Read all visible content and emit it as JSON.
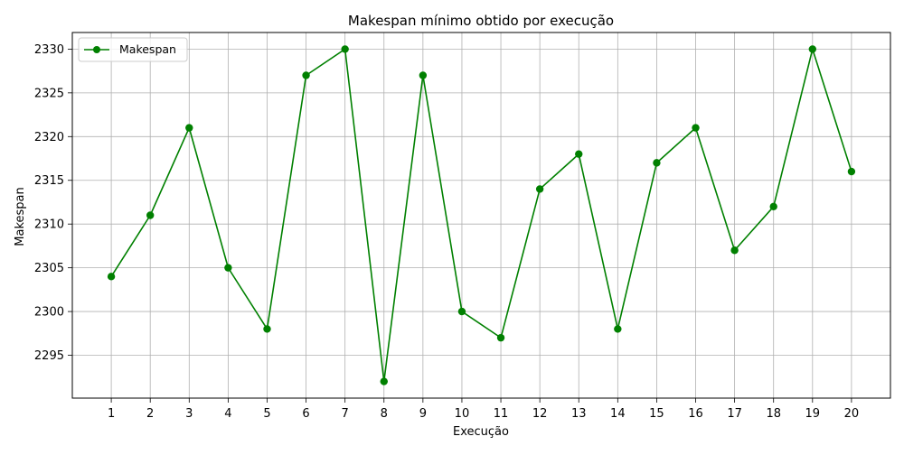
{
  "chart_data": {
    "type": "line",
    "title": "Makespan mínimo obtido por execução",
    "xlabel": "Execução",
    "ylabel": "Makespan",
    "x": [
      1,
      2,
      3,
      4,
      5,
      6,
      7,
      8,
      9,
      10,
      11,
      12,
      13,
      14,
      15,
      16,
      17,
      18,
      19,
      20
    ],
    "series": [
      {
        "name": "Makespan",
        "color": "#008000",
        "marker": "circle",
        "values": [
          2304,
          2311,
          2321,
          2305,
          2298,
          2327,
          2330,
          2292,
          2327,
          2300,
          2297,
          2314,
          2318,
          2298,
          2317,
          2321,
          2307,
          2312,
          2330,
          2316
        ]
      }
    ],
    "xlim": [
      0.0,
      21.0
    ],
    "ylim": [
      2290.1,
      2331.9
    ],
    "xticks": [
      1,
      2,
      3,
      4,
      5,
      6,
      7,
      8,
      9,
      10,
      11,
      12,
      13,
      14,
      15,
      16,
      17,
      18,
      19,
      20
    ],
    "yticks": [
      2295,
      2300,
      2305,
      2310,
      2315,
      2320,
      2325,
      2330
    ],
    "grid": true,
    "legend_position": "top-left"
  }
}
